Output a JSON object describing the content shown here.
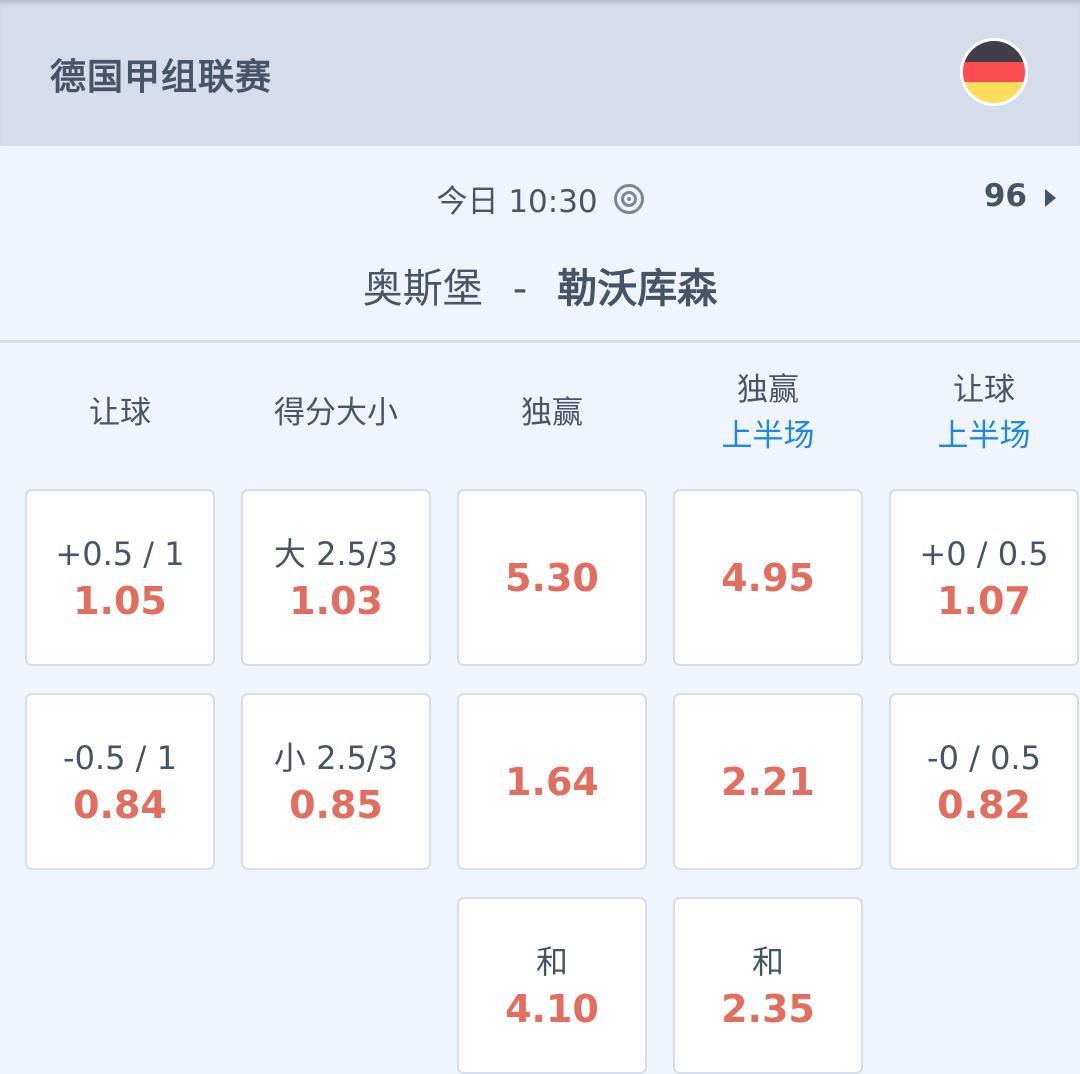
{
  "header": {
    "league": "德国甲组联赛",
    "flag_icon": "germany-flag",
    "flag_colors": [
      "#3f3e4a",
      "#fb4c50",
      "#ffdd5a"
    ]
  },
  "match": {
    "time": "今日 10:30",
    "more_count": "96",
    "home": "奥斯堡",
    "separator": "-",
    "away": "勒沃库森"
  },
  "columns": [
    {
      "title": "让球",
      "sub": ""
    },
    {
      "title": "得分大小",
      "sub": ""
    },
    {
      "title": "独赢",
      "sub": ""
    },
    {
      "title": "独赢",
      "sub": "上半场"
    },
    {
      "title": "让球",
      "sub": "上半场"
    }
  ],
  "rows": [
    [
      {
        "label": "+0.5 / 1",
        "odds": "1.05"
      },
      {
        "label": "大 2.5/3",
        "odds": "1.03"
      },
      {
        "label": "",
        "odds": "5.30"
      },
      {
        "label": "",
        "odds": "4.95"
      },
      {
        "label": "+0 / 0.5",
        "odds": "1.07"
      }
    ],
    [
      {
        "label": "-0.5 / 1",
        "odds": "0.84"
      },
      {
        "label": "小 2.5/3",
        "odds": "0.85"
      },
      {
        "label": "",
        "odds": "1.64"
      },
      {
        "label": "",
        "odds": "2.21"
      },
      {
        "label": "-0 / 0.5",
        "odds": "0.82"
      }
    ],
    [
      null,
      null,
      {
        "label": "和",
        "odds": "4.10"
      },
      {
        "label": "和",
        "odds": "2.35"
      },
      null
    ]
  ],
  "colors": {
    "odds": "#e36d5e",
    "accent": "#1e88e5",
    "header_bg": "#d5ddea",
    "page_bg": "#eff4fd"
  }
}
